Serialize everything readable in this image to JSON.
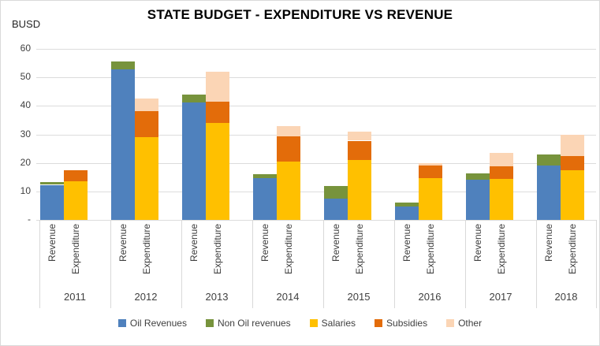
{
  "chart_data": {
    "type": "bar",
    "stacked": true,
    "title": "STATE BUDGET - EXPENDITURE VS REVENUE",
    "ylabel": "BUSD",
    "xlabel": "",
    "ylim": [
      0,
      60
    ],
    "grid": true,
    "legend_position": "bottom",
    "categories": [
      "2011",
      "2012",
      "2013",
      "2014",
      "2015",
      "2016",
      "2017",
      "2018"
    ],
    "bar_labels": [
      "Revenue",
      "Expenditure"
    ],
    "y_ticks": [
      {
        "label": "60",
        "value": 60
      },
      {
        "label": "50",
        "value": 50
      },
      {
        "label": "40",
        "value": 40
      },
      {
        "label": "30",
        "value": 30
      },
      {
        "label": "20",
        "value": 20
      },
      {
        "label": "10",
        "value": 10
      },
      {
        "label": "-",
        "value": 0
      }
    ],
    "series": [
      {
        "name": "Oil Revenues",
        "bar": "Revenue",
        "color": "#4F81BD",
        "values": [
          12.3,
          52.8,
          41.2,
          14.6,
          7.5,
          4.7,
          14.0,
          19.0
        ]
      },
      {
        "name": "Non Oil revenues",
        "bar": "Revenue",
        "color": "#77933C",
        "values": [
          1.0,
          2.7,
          2.7,
          1.4,
          4.4,
          1.5,
          2.3,
          4.0
        ]
      },
      {
        "name": "Salaries",
        "bar": "Expenditure",
        "color": "#FFC000",
        "values": [
          13.5,
          29.0,
          34.0,
          20.4,
          21.0,
          14.6,
          14.3,
          17.4
        ]
      },
      {
        "name": "Subsidies",
        "bar": "Expenditure",
        "color": "#E36C0A",
        "values": [
          3.9,
          9.2,
          7.6,
          8.8,
          6.8,
          4.5,
          4.4,
          4.9
        ]
      },
      {
        "name": "Other",
        "bar": "Expenditure",
        "color": "#FBD5B5",
        "values": [
          0,
          4.4,
          10.5,
          3.7,
          3.2,
          0.8,
          4.7,
          7.7
        ]
      }
    ],
    "totals": {
      "Revenue": [
        13.3,
        55.5,
        43.9,
        16.0,
        11.9,
        6.2,
        16.3,
        23.0
      ],
      "Expenditure": [
        17.4,
        42.6,
        52.1,
        32.9,
        31.0,
        19.9,
        23.4,
        30.0
      ]
    }
  }
}
